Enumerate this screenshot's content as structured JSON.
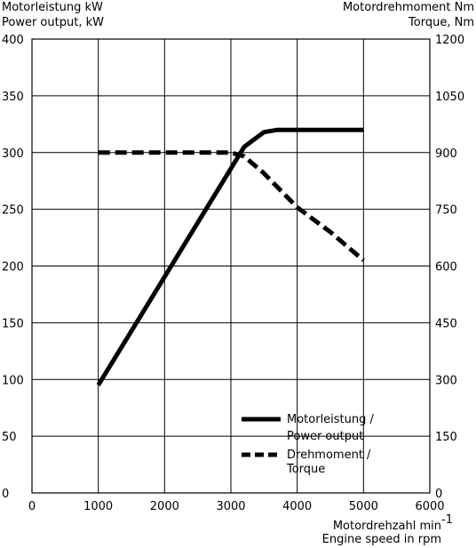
{
  "chart_data": {
    "type": "line",
    "title": "",
    "y_left_label": [
      "Motorleistung kW",
      "Power output, kW"
    ],
    "y_right_label": [
      "Motordrehmoment Nm",
      "Torque, Nm"
    ],
    "x_label": [
      "Motordrehzahl min",
      "-1",
      "Engine speed in rpm"
    ],
    "xlim": [
      0,
      6000
    ],
    "ylim_left": [
      0,
      400
    ],
    "ylim_right": [
      0,
      1200
    ],
    "x_ticks": [
      0,
      1000,
      2000,
      3000,
      4000,
      5000,
      6000
    ],
    "x_tick_labels": [
      "0",
      "1000",
      "2000",
      "3000",
      "4000",
      "5000",
      "6000"
    ],
    "y_left_ticks": [
      0,
      50,
      100,
      150,
      200,
      250,
      300,
      350,
      400
    ],
    "y_left_tick_labels": [
      "0",
      "50",
      "100",
      "150",
      "200",
      "250",
      "300",
      "350",
      "400"
    ],
    "y_right_ticks": [
      0,
      150,
      300,
      450,
      600,
      750,
      900,
      1050,
      1200
    ],
    "y_right_tick_labels": [
      "0",
      "150",
      "300",
      "450",
      "600",
      "750",
      "900",
      "1050",
      "1200"
    ],
    "grid": true,
    "legend_position": "bottom-right",
    "series": [
      {
        "name": [
          "Motorleistung /",
          "Power output"
        ],
        "axis": "left",
        "style": "solid",
        "color": "#000000",
        "x": [
          1000,
          3200,
          3500,
          3700,
          5000
        ],
        "y": [
          95,
          305,
          318,
          320,
          320
        ]
      },
      {
        "name": [
          "Drehmoment /",
          "Torque"
        ],
        "axis": "right",
        "style": "dashed",
        "color": "#000000",
        "x": [
          1000,
          2000,
          3000,
          3200,
          3500,
          4000,
          4500,
          5000
        ],
        "y": [
          900,
          900,
          900,
          890,
          845,
          755,
          690,
          615
        ]
      }
    ]
  }
}
